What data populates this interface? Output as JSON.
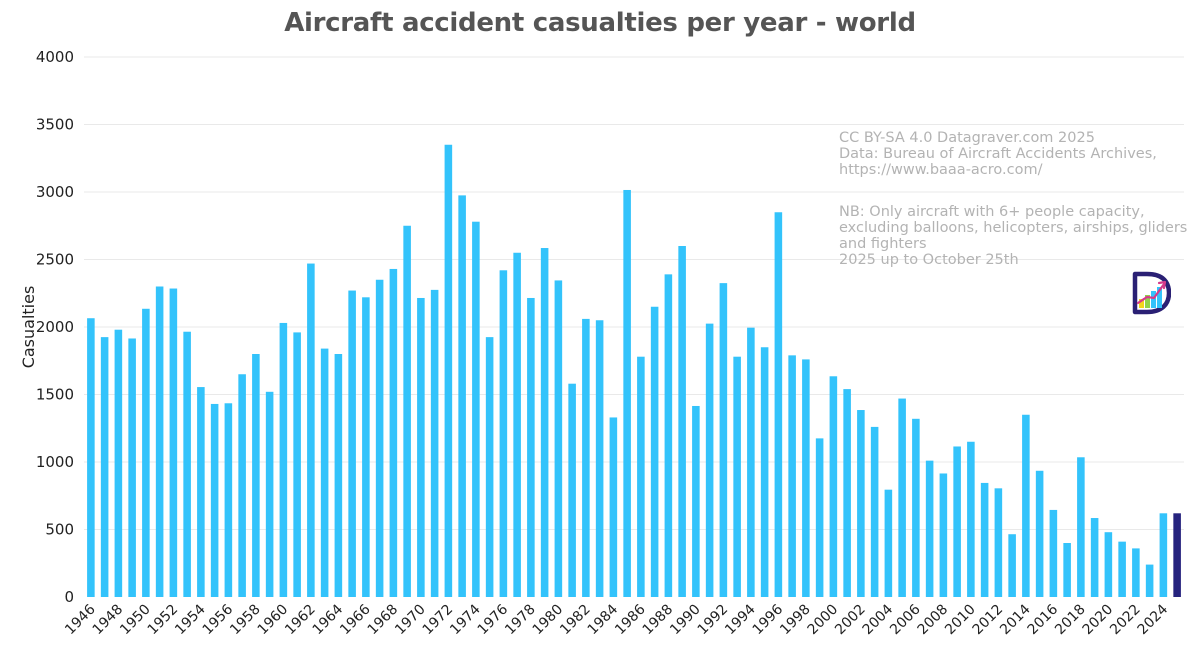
{
  "chart_data": {
    "type": "bar",
    "title": "Aircraft accident casualties per year - world",
    "xlabel": "",
    "ylabel": "Casualties",
    "ylim": [
      0,
      4000
    ],
    "yticks": [
      0,
      500,
      1000,
      1500,
      2000,
      2500,
      3000,
      3500,
      4000
    ],
    "grid": true,
    "legend": "none",
    "categories": [
      1946,
      1947,
      1948,
      1949,
      1950,
      1951,
      1952,
      1953,
      1954,
      1955,
      1956,
      1957,
      1958,
      1959,
      1960,
      1961,
      1962,
      1963,
      1964,
      1965,
      1966,
      1967,
      1968,
      1969,
      1970,
      1971,
      1972,
      1973,
      1974,
      1975,
      1976,
      1977,
      1978,
      1979,
      1980,
      1981,
      1982,
      1983,
      1984,
      1985,
      1986,
      1987,
      1988,
      1989,
      1990,
      1991,
      1992,
      1993,
      1994,
      1995,
      1996,
      1997,
      1998,
      1999,
      2000,
      2001,
      2002,
      2003,
      2004,
      2005,
      2006,
      2007,
      2008,
      2009,
      2010,
      2011,
      2012,
      2013,
      2014,
      2015,
      2016,
      2017,
      2018,
      2019,
      2020,
      2021,
      2022,
      2023,
      2024,
      2025
    ],
    "values": [
      2065,
      1925,
      1980,
      1915,
      2135,
      2300,
      2285,
      1965,
      1555,
      1430,
      1435,
      1650,
      1800,
      1520,
      2030,
      1960,
      2470,
      1840,
      1800,
      2270,
      2220,
      2350,
      2430,
      2750,
      2215,
      2275,
      3350,
      2975,
      2780,
      1925,
      2420,
      2550,
      2215,
      2585,
      2345,
      1580,
      2060,
      2050,
      1330,
      3015,
      1780,
      2150,
      2390,
      2600,
      1415,
      2025,
      2325,
      1780,
      1995,
      1850,
      2850,
      1790,
      1760,
      1175,
      1635,
      1540,
      1385,
      1260,
      795,
      1470,
      1320,
      1010,
      915,
      1115,
      1150,
      845,
      805,
      465,
      1350,
      935,
      645,
      400,
      1035,
      585,
      480,
      410,
      360,
      240,
      620,
      620
    ],
    "xtick_labels": [
      "1946",
      "1948",
      "1950",
      "1952",
      "1954",
      "1956",
      "1958",
      "1960",
      "1962",
      "1964",
      "1966",
      "1968",
      "1970",
      "1972",
      "1974",
      "1976",
      "1978",
      "1980",
      "1982",
      "1984",
      "1986",
      "1988",
      "1990",
      "1992",
      "1994",
      "1996",
      "1998",
      "2000",
      "2002",
      "2004",
      "2006",
      "2008",
      "2010",
      "2012",
      "2014",
      "2016",
      "2018",
      "2020",
      "2022",
      "2024"
    ],
    "colors": {
      "bar": "#33c3fb",
      "highlight_bar": "#26237e",
      "grid": "#e9e9e9"
    },
    "highlight": "2025",
    "annotations": {
      "credit": "CC BY-SA 4.0 Datagraver.com 2025\nData: Bureau of Aircraft Accidents Archives,\nhttps://www.baaa-acro.com/",
      "disclaimer": "NB: Only aircraft with 6+ people capacity,\nexcluding balloons, helicopters, airships, gliders\nand fighters\n2025 up to October 25th"
    }
  }
}
